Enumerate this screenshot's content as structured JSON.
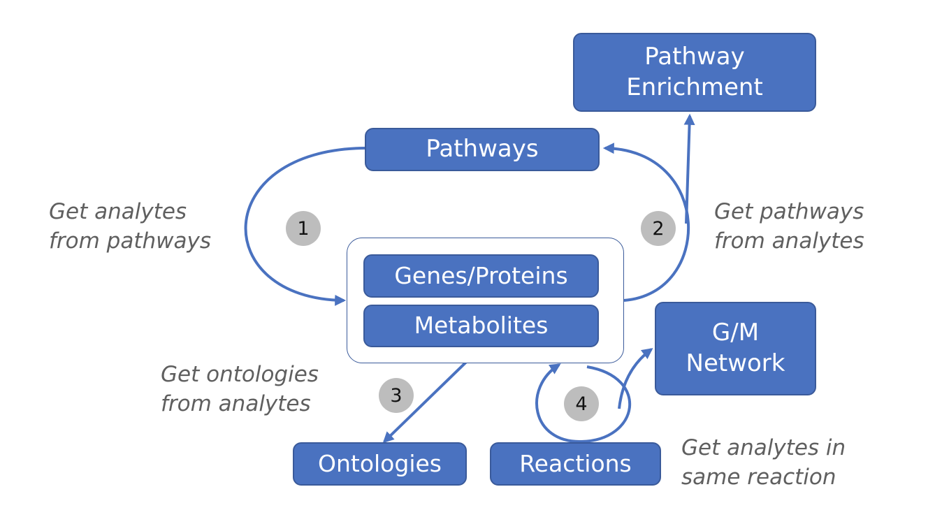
{
  "colors": {
    "box_fill": "#4a72c0",
    "box_border": "#3a5a9a",
    "arrow": "#4a72c0",
    "caption_text": "#5f5f5f",
    "badge_fill": "#bdbdbd"
  },
  "nodes": {
    "pathway_enrichment": "Pathway\nEnrichment",
    "pathways": "Pathways",
    "genes_proteins": "Genes/Proteins",
    "metabolites": "Metabolites",
    "gm_network": "G/M\nNetwork",
    "ontologies": "Ontologies",
    "reactions": "Reactions"
  },
  "captions": {
    "analytes_from_pathways": "Get analytes\nfrom pathways",
    "pathways_from_analytes": "Get pathways\nfrom analytes",
    "ontologies_from_analytes": "Get ontologies\nfrom analytes",
    "analytes_same_reaction": "Get analytes in\nsame reaction"
  },
  "badges": {
    "one": "1",
    "two": "2",
    "three": "3",
    "four": "4"
  }
}
